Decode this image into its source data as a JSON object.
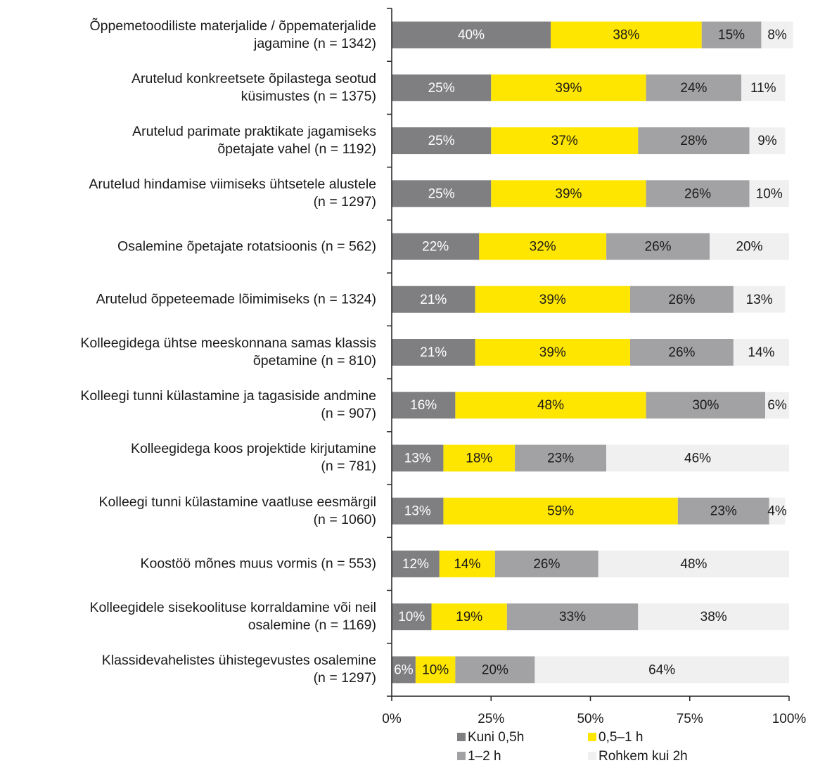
{
  "chart_data": {
    "type": "stacked_barh",
    "categories": [
      "Õppemetoodiliste materjalide / õppematerjalide\njagamine (n = 1342)",
      "Arutelud konkreetsete õpilastega seotud\nküsimustes (n = 1375)",
      "Arutelud parimate praktikate jagamiseks\nõpetajate vahel (n = 1192)",
      "Arutelud hindamise viimiseks ühtsetele alustele\n(n = 1297)",
      "Osalemine õpetajate rotatsioonis (n = 562)",
      "Arutelud õppeteemade lõimimiseks (n = 1324)",
      "Kolleegidega ühtse meeskonnana samas klassis\nõpetamine (n = 810)",
      "Kolleegi tunni külastamine ja tagasiside andmine\n(n = 907)",
      "Kolleegidega koos projektide kirjutamine\n(n = 781)",
      "Kolleegi tunni külastamine vaatluse eesmärgil\n(n = 1060)",
      "Koostöö mõnes muus vormis (n = 553)",
      "Kolleegidele sisekoolituse korraldamine või neil\nosalemine (n = 1169)",
      "Klassidevahelistes ühistegevustes osalemine\n(n = 1297)"
    ],
    "series": [
      {
        "name": "Kuni 0,5h",
        "color": "#7f7f82",
        "values": [
          40,
          25,
          25,
          25,
          22,
          21,
          21,
          16,
          13,
          13,
          12,
          10,
          6
        ],
        "value_labels": [
          "40%",
          "25%",
          "25%",
          "25%",
          "22%",
          "21%",
          "21%",
          "16%",
          "13%",
          "13%",
          "12%",
          "10%",
          "6%"
        ]
      },
      {
        "name": "0,5–1 h",
        "color": "#ffe600",
        "values": [
          38,
          39,
          37,
          39,
          32,
          39,
          39,
          48,
          18,
          59,
          14,
          19,
          10
        ],
        "value_labels": [
          "38%",
          "39%",
          "37%",
          "39%",
          "32%",
          "39%",
          "39%",
          "48%",
          "18%",
          "59%",
          "14%",
          "19%",
          "10%"
        ]
      },
      {
        "name": "1–2 h",
        "color": "#a2a2a4",
        "values": [
          15,
          24,
          28,
          26,
          26,
          26,
          26,
          30,
          23,
          23,
          26,
          33,
          20
        ],
        "value_labels": [
          "15%",
          "24%",
          "28%",
          "26%",
          "26%",
          "26%",
          "26%",
          "30%",
          "23%",
          "23%",
          "26%",
          "33%",
          "20%"
        ]
      },
      {
        "name": "Rohkem kui 2h",
        "color": "#f0f0f0",
        "values": [
          8,
          11,
          9,
          10,
          20,
          13,
          14,
          6,
          46,
          4,
          48,
          38,
          64
        ],
        "value_labels": [
          "8%",
          "11%",
          "9%",
          "10%",
          "20%",
          "13%",
          "14%",
          "6%",
          "46%",
          "4%",
          "48%",
          "38%",
          "64%"
        ]
      }
    ],
    "xlim": [
      0,
      100
    ],
    "xticks": [
      {
        "value": 0,
        "label": "0%"
      },
      {
        "value": 25,
        "label": "25%"
      },
      {
        "value": 50,
        "label": "50%"
      },
      {
        "value": 75,
        "label": "75%"
      },
      {
        "value": 100,
        "label": "100%"
      }
    ]
  }
}
